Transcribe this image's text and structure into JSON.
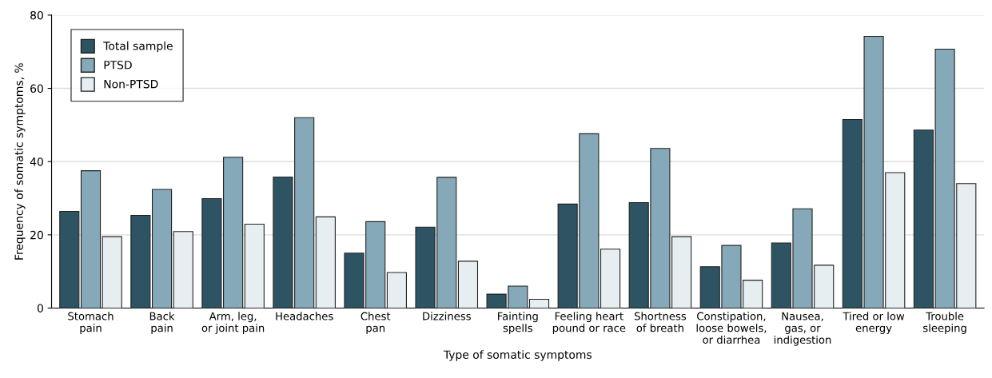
{
  "chart_data": {
    "type": "bar",
    "xlabel": "Type of somatic symptoms",
    "ylabel": "Frequency of somatic symptoms, %",
    "categories": [
      "Stomach\npain",
      "Back\npain",
      "Arm, leg,\nor joint pain",
      "Headaches",
      "Chest\npan",
      "Dizziness",
      "Fainting\nspells",
      "Feeling heart\npound or race",
      "Shortness\nof breath",
      "Constipation,\nloose bowels,\nor diarrhea",
      "Nausea,\ngas, or\nindigestion",
      "Tired or low\nenergy",
      "Trouble\nsleeping"
    ],
    "series": [
      {
        "name": "Total sample",
        "color": "#2e5463",
        "values": [
          26.4,
          25.3,
          29.9,
          35.8,
          15.0,
          22.1,
          3.8,
          28.4,
          28.8,
          11.3,
          17.8,
          51.5,
          48.6
        ]
      },
      {
        "name": "PTSD",
        "color": "#85a9b8",
        "values": [
          37.5,
          32.4,
          41.2,
          52.0,
          23.6,
          35.7,
          6.0,
          47.6,
          43.6,
          17.1,
          27.1,
          74.2,
          70.7
        ]
      },
      {
        "name": "Non-PTSD",
        "color": "#e6eef1",
        "values": [
          19.5,
          20.9,
          22.9,
          24.9,
          9.7,
          12.8,
          2.4,
          16.1,
          19.5,
          7.6,
          11.7,
          37.0,
          34.0
        ]
      }
    ],
    "ylim": [
      0,
      80
    ],
    "yticks": [
      0,
      20,
      40,
      60,
      80
    ],
    "grid": "y",
    "legend": "top left"
  }
}
